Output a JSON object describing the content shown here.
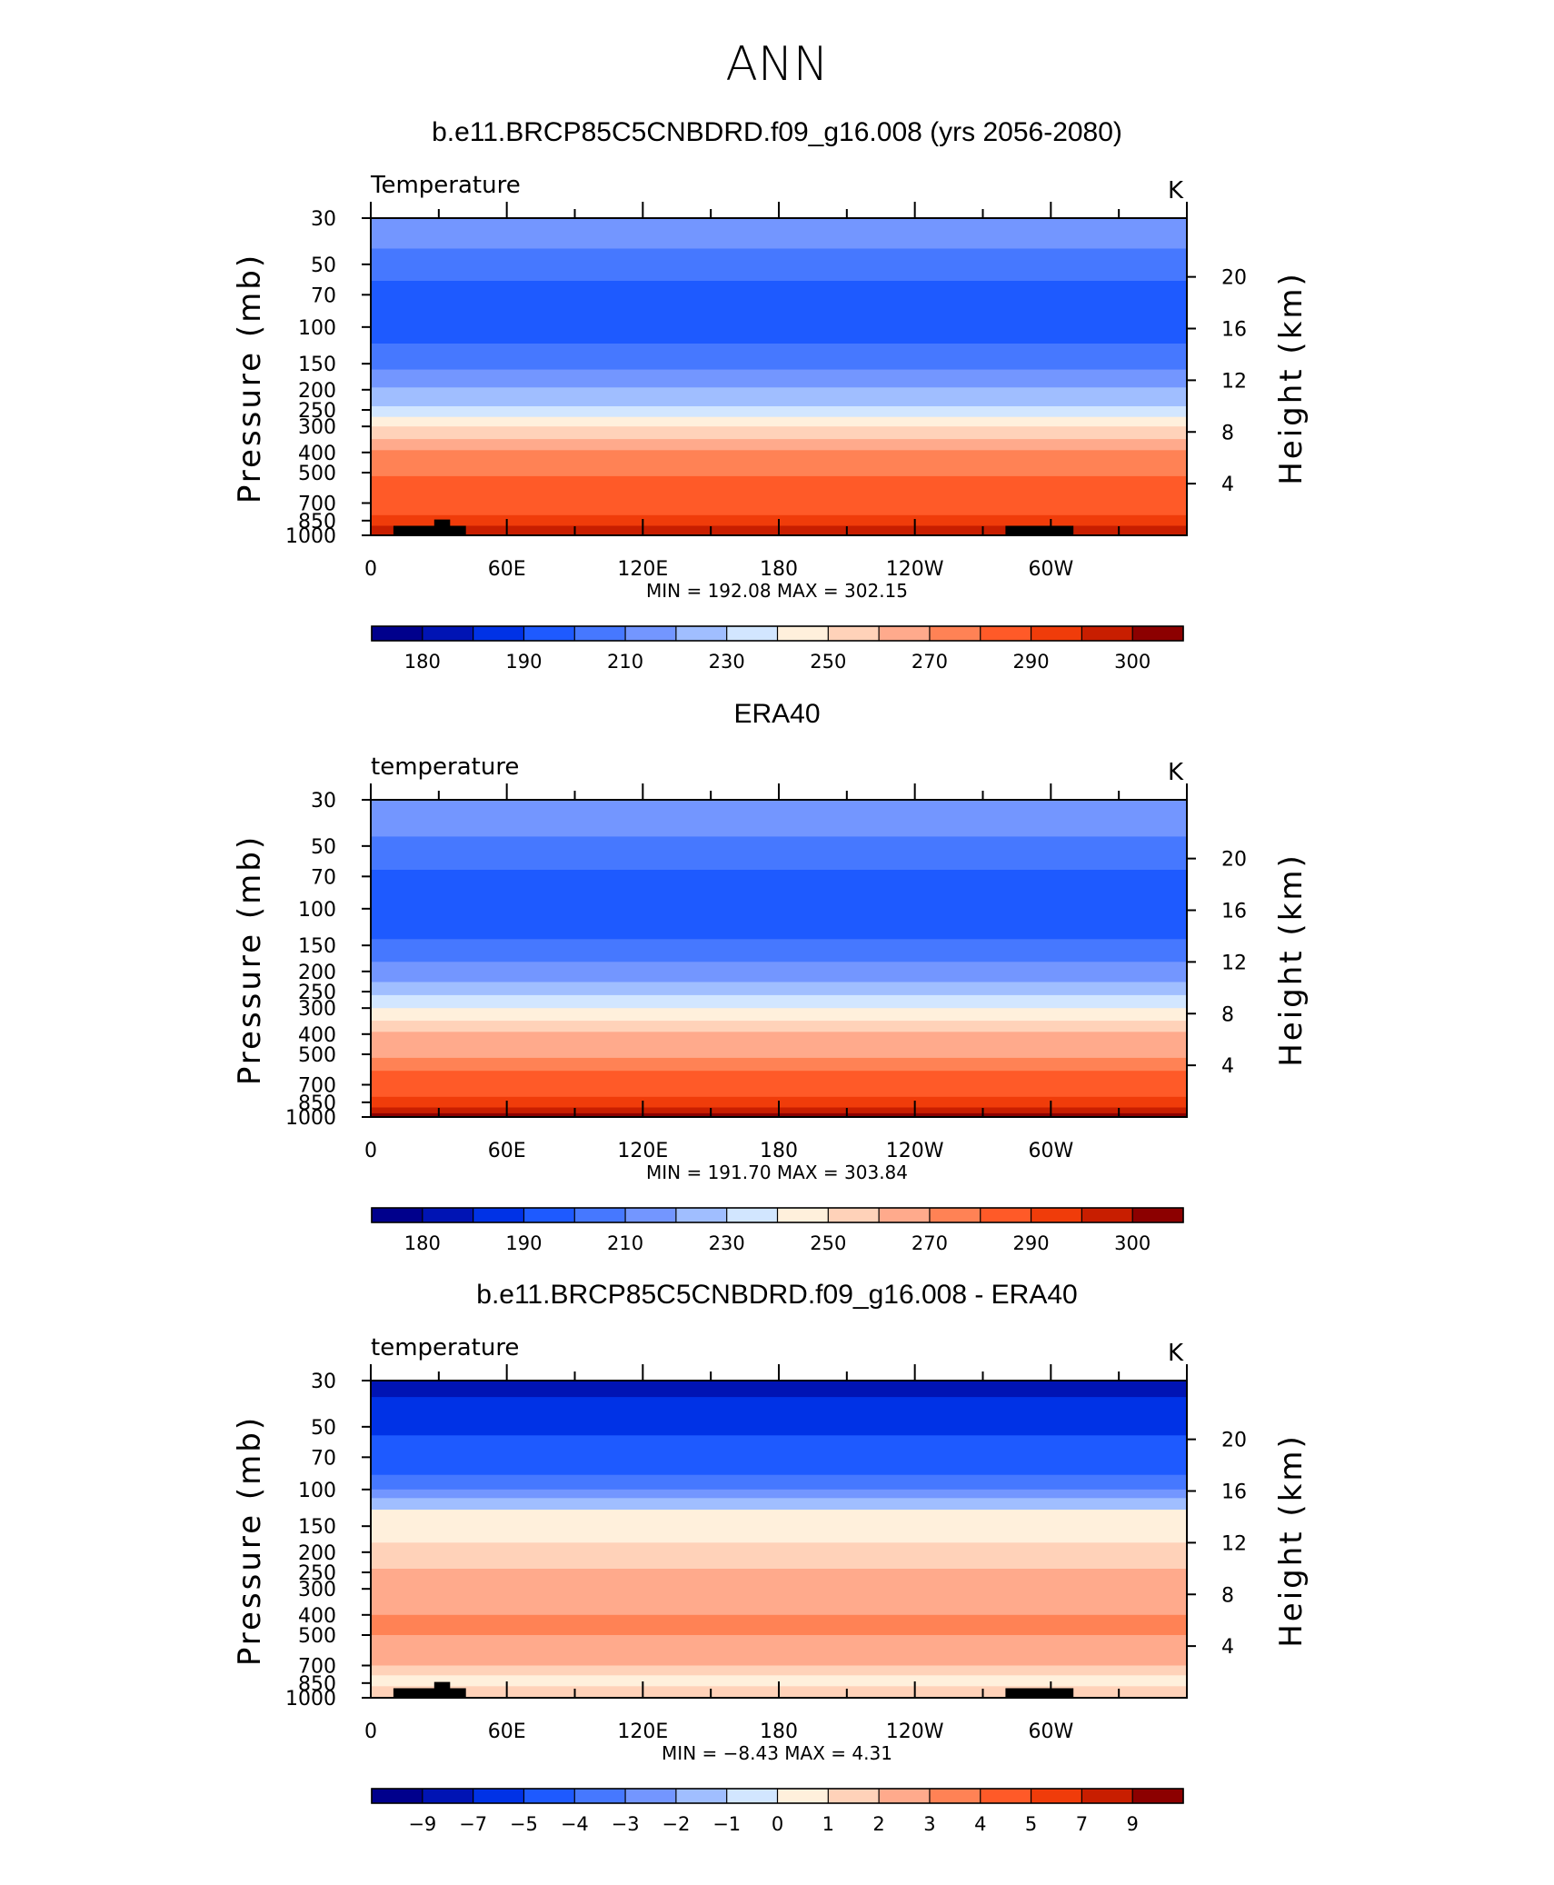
{
  "figure": {
    "title": "ANN",
    "colors": {
      "text": "#000000",
      "land": "#000000",
      "palette": [
        "#00008c",
        "#0014b4",
        "#0032e6",
        "#1e5aff",
        "#4678ff",
        "#7396ff",
        "#a0beff",
        "#d2e6ff",
        "#fff0dc",
        "#ffd2b9",
        "#ffaa8c",
        "#ff8255",
        "#ff5a28",
        "#f03c0a",
        "#c81e00",
        "#8c0000"
      ]
    }
  },
  "chart_data": [
    {
      "type": "heatmap",
      "title": "b.e11.BRCP85C5CNBDRD.f09_g16.008 (yrs 2056-2080)",
      "left_label": "Temperature",
      "right_label": "K",
      "ylabel": "Pressure (mb)",
      "y2label": "Height (km)",
      "x_ticks": [
        "0",
        "60E",
        "120E",
        "180",
        "120W",
        "60W"
      ],
      "x_tick_lons": [
        0,
        60,
        120,
        180,
        240,
        300
      ],
      "xlim": [
        0,
        360
      ],
      "y_ticks": [
        30,
        50,
        70,
        100,
        150,
        200,
        250,
        300,
        400,
        500,
        700,
        850,
        1000
      ],
      "ylim_mb": [
        30,
        1000
      ],
      "y_scale": "log",
      "height_ticks_km": [
        4,
        8,
        12,
        16,
        20
      ],
      "stats": {
        "min_label": "MIN =",
        "min": "192.08",
        "max_label": "MAX =",
        "max": "302.15"
      },
      "colorbar_labels": [
        "180",
        "190",
        "210",
        "230",
        "250",
        "270",
        "290",
        "300"
      ],
      "band_levels_mb": [
        30,
        42,
        60,
        120,
        160,
        195,
        240,
        270,
        300,
        345,
        390,
        440,
        520,
        600,
        700,
        800,
        900,
        1000
      ],
      "band_colors": [
        5,
        4,
        3,
        4,
        5,
        6,
        7,
        8,
        9,
        10,
        11,
        11,
        12,
        12,
        12,
        13,
        14
      ]
    },
    {
      "type": "heatmap",
      "title": "ERA40",
      "left_label": "temperature",
      "right_label": "K",
      "ylabel": "Pressure (mb)",
      "y2label": "Height (km)",
      "x_ticks": [
        "0",
        "60E",
        "120E",
        "180",
        "120W",
        "60W"
      ],
      "x_tick_lons": [
        0,
        60,
        120,
        180,
        240,
        300
      ],
      "xlim": [
        0,
        360
      ],
      "y_ticks": [
        30,
        50,
        70,
        100,
        150,
        200,
        250,
        300,
        400,
        500,
        700,
        850,
        1000
      ],
      "ylim_mb": [
        30,
        1000
      ],
      "y_scale": "log",
      "height_ticks_km": [
        4,
        8,
        12,
        16,
        20
      ],
      "stats": {
        "min_label": "MIN =",
        "min": "191.70",
        "max_label": "MAX =",
        "max": "303.84"
      },
      "colorbar_labels": [
        "180",
        "190",
        "210",
        "230",
        "250",
        "270",
        "290",
        "300"
      ],
      "band_levels_mb": [
        30,
        45,
        65,
        140,
        180,
        225,
        260,
        300,
        345,
        390,
        440,
        520,
        600,
        700,
        800,
        900,
        960,
        1000
      ],
      "band_colors": [
        5,
        4,
        3,
        4,
        5,
        6,
        7,
        8,
        9,
        10,
        10,
        11,
        12,
        12,
        13,
        14,
        15
      ]
    },
    {
      "type": "heatmap",
      "title": "b.e11.BRCP85C5CNBDRD.f09_g16.008 - ERA40",
      "left_label": "temperature",
      "right_label": "K",
      "ylabel": "Pressure (mb)",
      "y2label": "Height (km)",
      "x_ticks": [
        "0",
        "60E",
        "120E",
        "180",
        "120W",
        "60W"
      ],
      "x_tick_lons": [
        0,
        60,
        120,
        180,
        240,
        300
      ],
      "xlim": [
        0,
        360
      ],
      "y_ticks": [
        30,
        50,
        70,
        100,
        150,
        200,
        250,
        300,
        400,
        500,
        700,
        850,
        1000
      ],
      "ylim_mb": [
        30,
        1000
      ],
      "y_scale": "log",
      "height_ticks_km": [
        4,
        8,
        12,
        16,
        20
      ],
      "stats": {
        "min_label": "MIN =",
        "min": "−8.43",
        "max_label": "MAX =",
        "max": "4.31"
      },
      "colorbar_labels": [
        "−9",
        "−7",
        "−5",
        "−4",
        "−3",
        "−2",
        "−1",
        "0",
        "1",
        "2",
        "3",
        "4",
        "5",
        "7",
        "9"
      ],
      "band_levels_mb": [
        30,
        36,
        55,
        85,
        100,
        110,
        125,
        180,
        240,
        400,
        500,
        700,
        780,
        880,
        1000
      ],
      "band_colors": [
        1,
        2,
        3,
        4,
        5,
        6,
        8,
        9,
        10,
        11,
        10,
        9,
        8,
        9
      ]
    }
  ]
}
